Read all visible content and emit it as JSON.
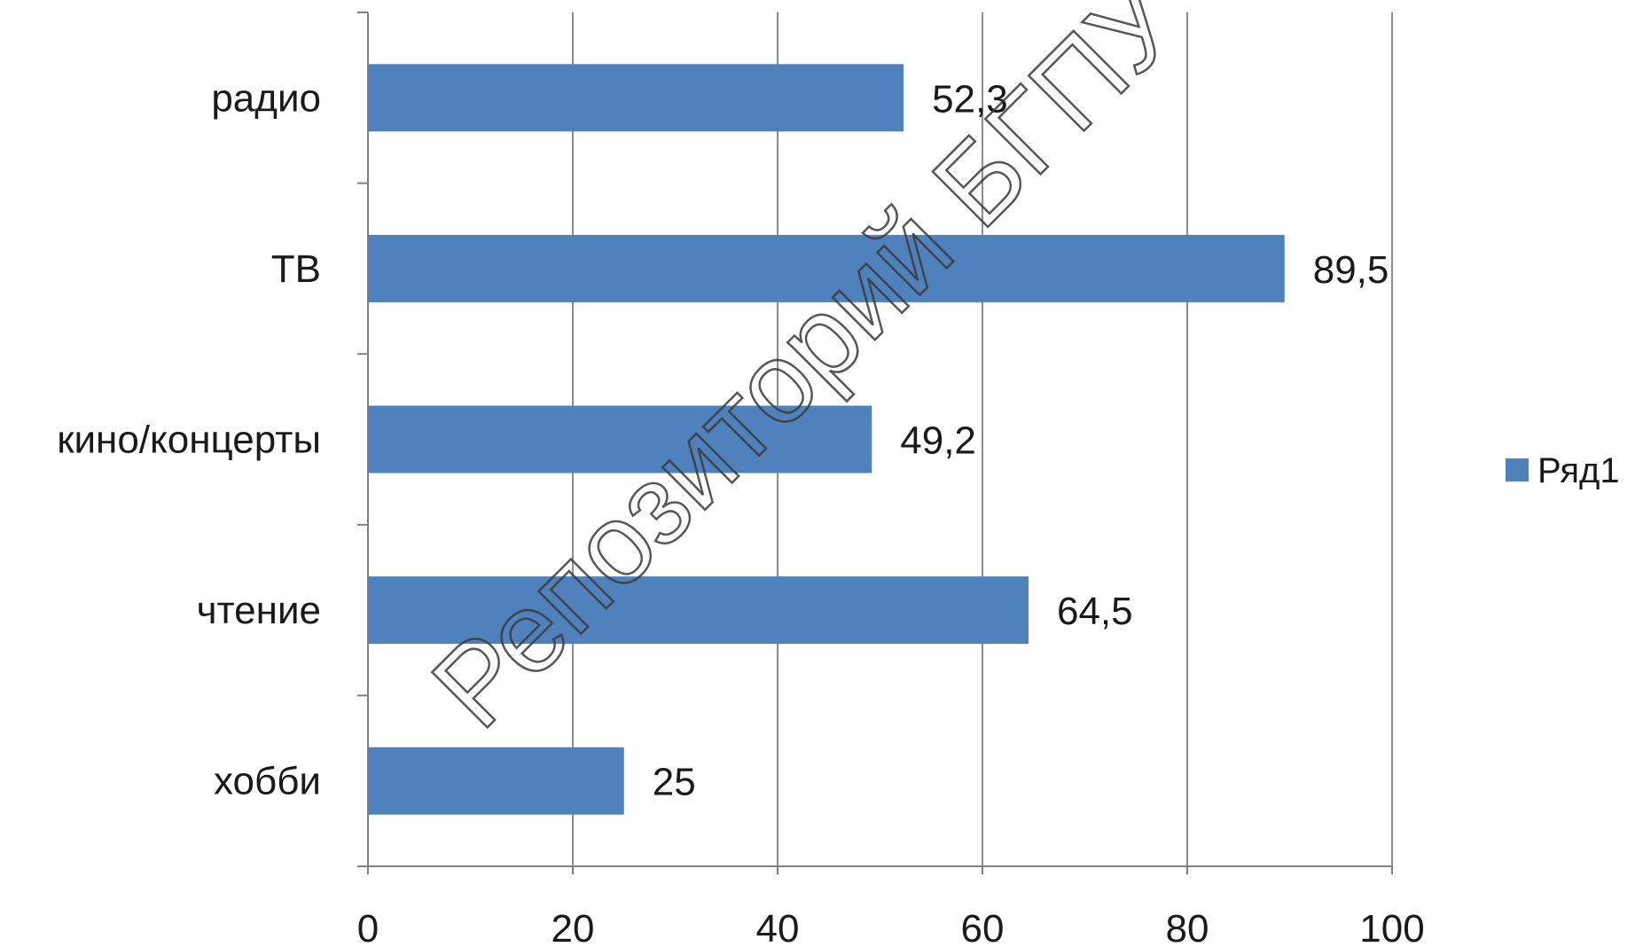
{
  "chart_data": {
    "type": "bar",
    "orientation": "horizontal",
    "categories": [
      "радио",
      "ТВ",
      "кино/концерты",
      "чтение",
      "хобби"
    ],
    "series": [
      {
        "name": "Ряд1",
        "values": [
          52.3,
          89.5,
          49.2,
          64.5,
          25
        ]
      }
    ],
    "value_labels": [
      "52,3",
      "89,5",
      "49,2",
      "64,5",
      "25"
    ],
    "xlim": [
      0,
      100
    ],
    "x_ticks": [
      "0",
      "20",
      "40",
      "60",
      "80",
      "100"
    ],
    "title": "",
    "xlabel": "",
    "ylabel": "",
    "grid": "vertical",
    "legend_position": "right",
    "colors": {
      "bar": "#4f81bd",
      "grid": "#8c8c8c",
      "axis": "#808080"
    }
  },
  "watermark": {
    "text": "Репозиторий БГПУ"
  }
}
